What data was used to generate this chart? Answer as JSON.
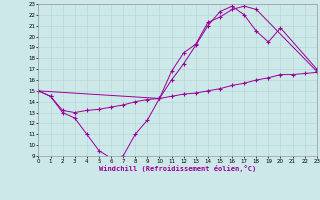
{
  "xlabel": "Windchill (Refroidissement éolien,°C)",
  "bg_color": "#cce8e8",
  "grid_color": "#b8d8d8",
  "line_color": "#990099",
  "xmin": 0,
  "xmax": 23,
  "ymin": 9,
  "ymax": 23,
  "line1_x": [
    0,
    1,
    2,
    3,
    4,
    5,
    6,
    7,
    8,
    9,
    10,
    11,
    12,
    13,
    14,
    15,
    16,
    17,
    18,
    23
  ],
  "line1_y": [
    15,
    14.5,
    13.0,
    12.5,
    11.0,
    9.5,
    8.8,
    9.0,
    11.0,
    12.3,
    14.3,
    16.8,
    18.5,
    19.3,
    21.3,
    21.8,
    22.5,
    22.8,
    22.5,
    16.8
  ],
  "line2_x": [
    0,
    1,
    2,
    3,
    4,
    5,
    6,
    7,
    8,
    9,
    10,
    11,
    12,
    13,
    14,
    15,
    16,
    17,
    18,
    19,
    20,
    21,
    22,
    23
  ],
  "line2_y": [
    15,
    14.5,
    13.2,
    13.0,
    13.2,
    13.3,
    13.5,
    13.7,
    14.0,
    14.2,
    14.3,
    14.5,
    14.7,
    14.8,
    15.0,
    15.2,
    15.5,
    15.7,
    16.0,
    16.2,
    16.5,
    16.5,
    16.6,
    16.7
  ],
  "line3_x": [
    0,
    10,
    11,
    12,
    13,
    14,
    15,
    16,
    17,
    18,
    19,
    20,
    23
  ],
  "line3_y": [
    15,
    14.3,
    16.0,
    17.5,
    19.2,
    21.0,
    22.3,
    22.8,
    22.0,
    20.5,
    19.5,
    20.8,
    17.0
  ]
}
